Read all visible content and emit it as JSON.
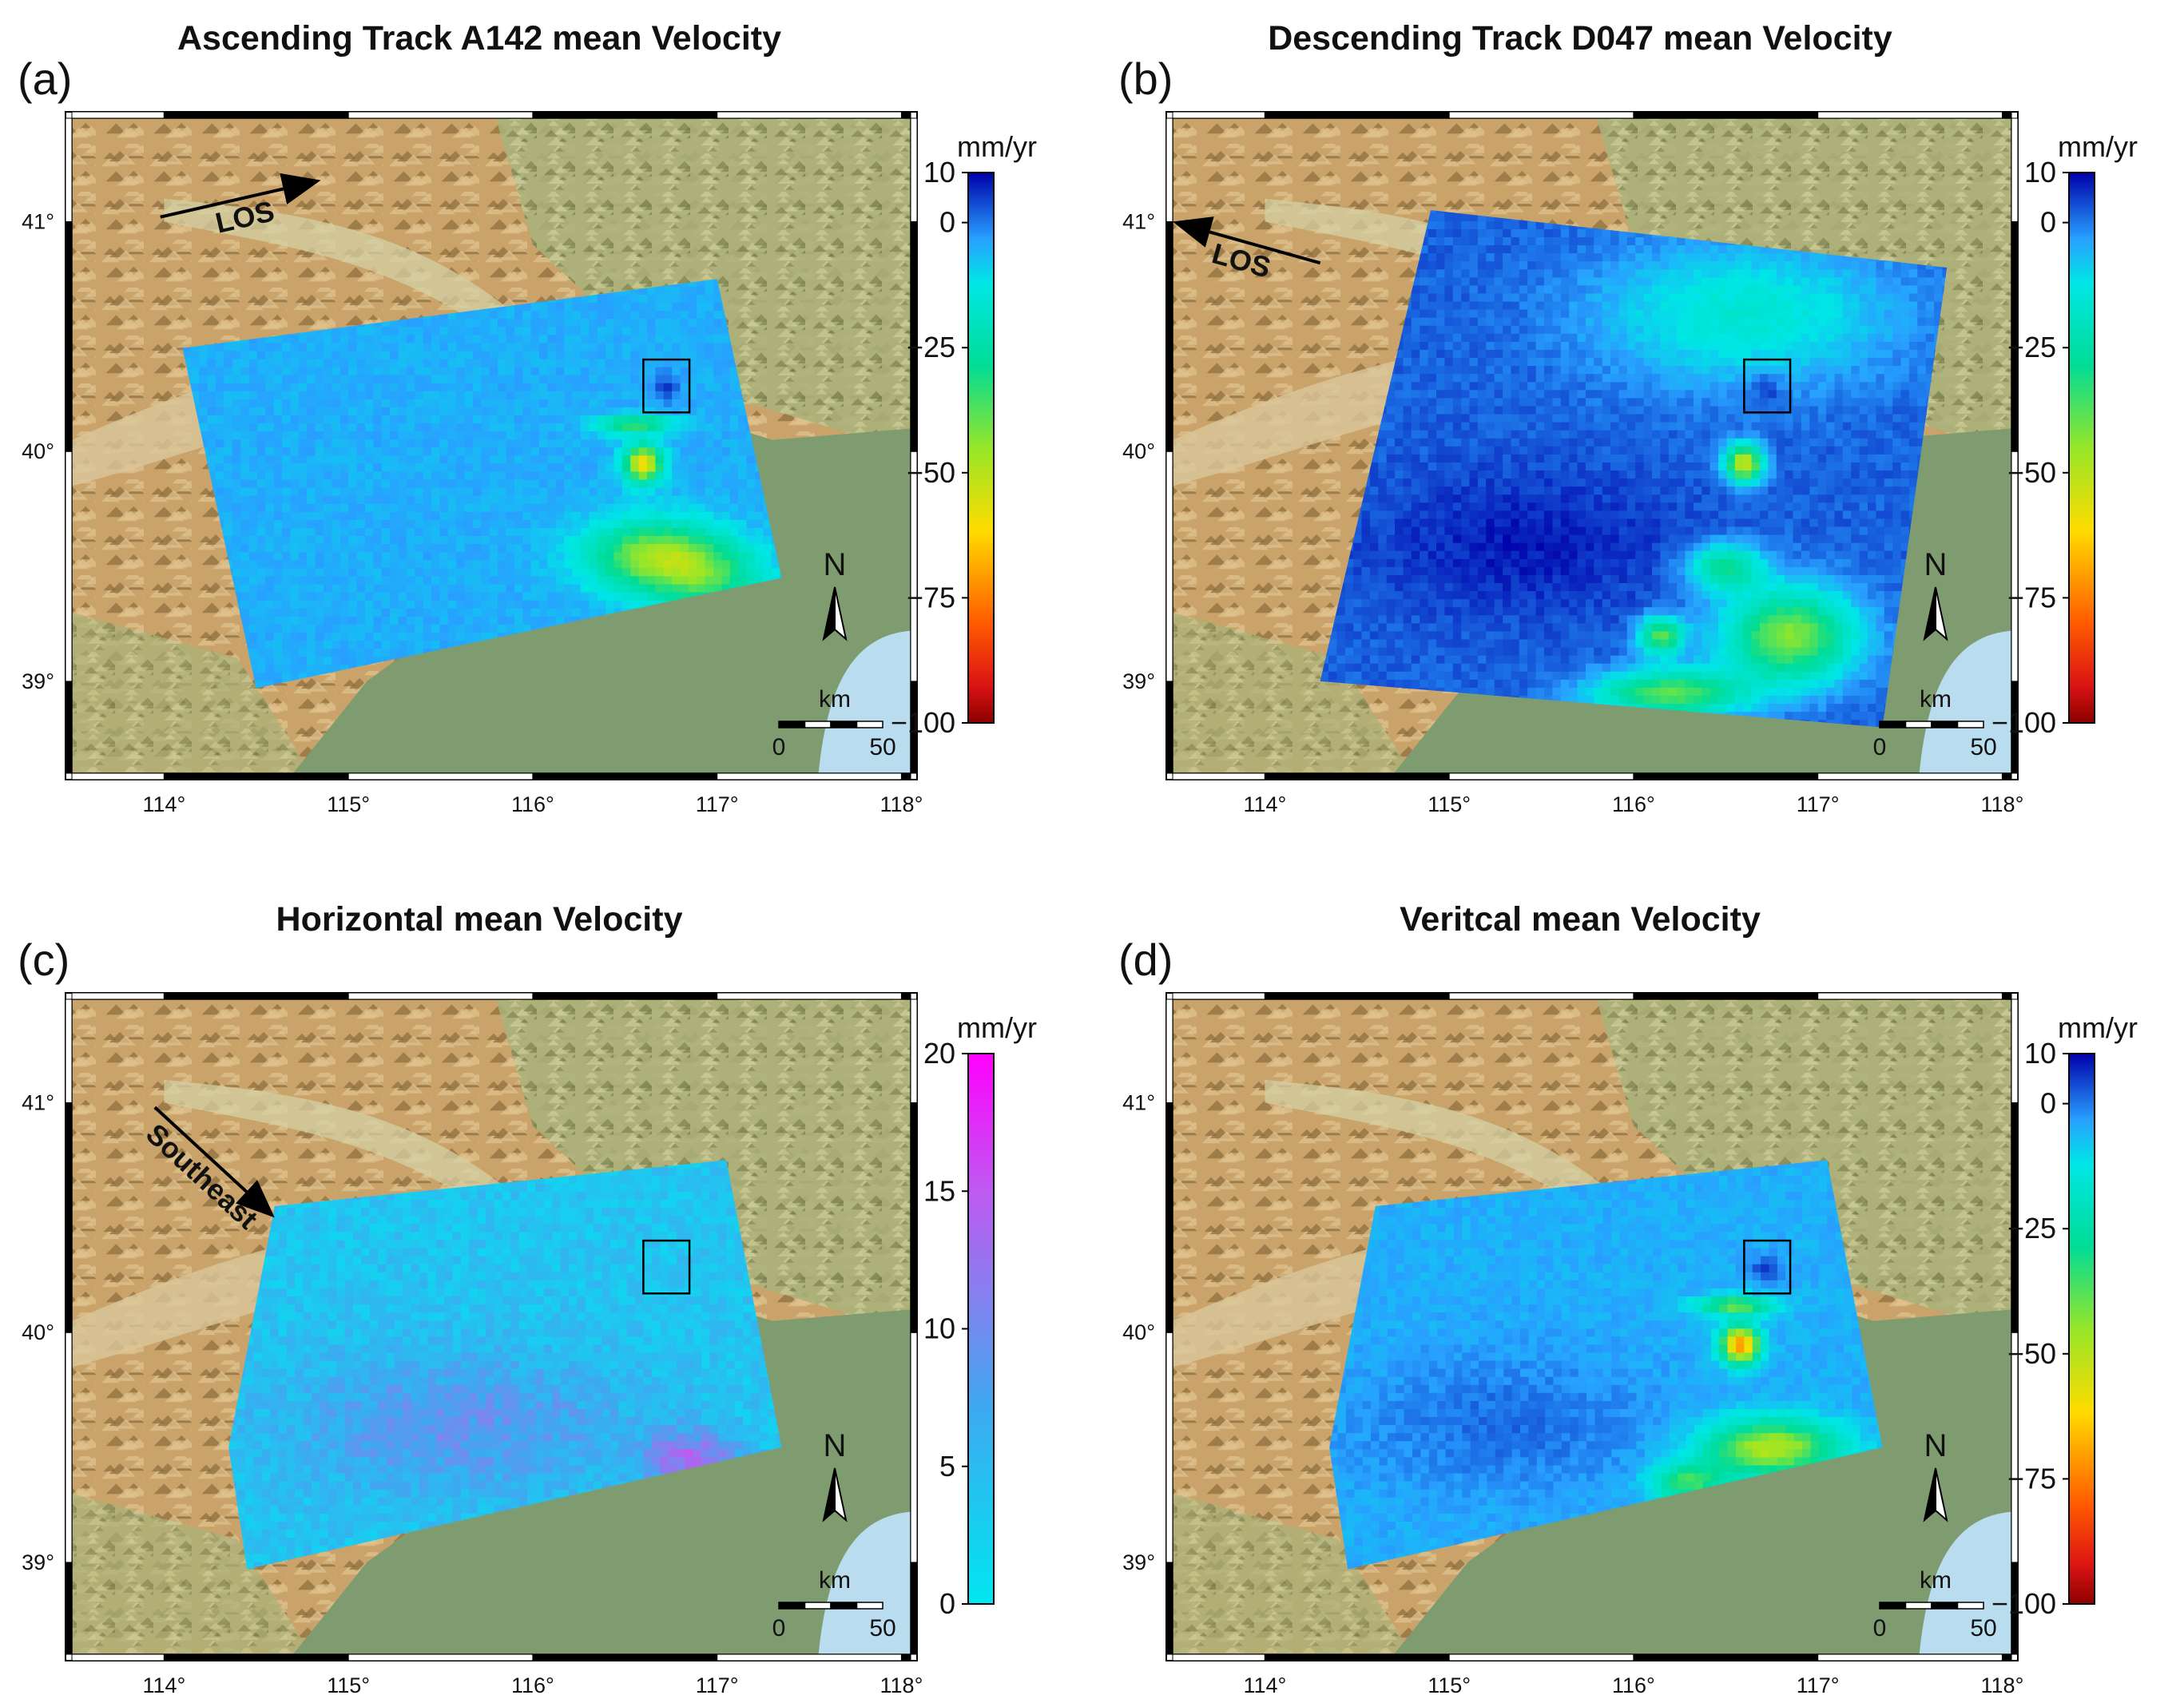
{
  "colors": {
    "terrain_high": "#c9a36a",
    "terrain_mid": "#a8b27a",
    "plain": "#7f9c70",
    "sea": "#b9dcee",
    "frame_dark": "#000000",
    "frame_light": "#ffffff"
  },
  "axes": {
    "lon_range": [
      113.5,
      118.05
    ],
    "lat_range": [
      38.6,
      41.45
    ],
    "lon_ticks": [
      {
        "v": 114,
        "t": "114°"
      },
      {
        "v": 115,
        "t": "115°"
      },
      {
        "v": 116,
        "t": "116°"
      },
      {
        "v": 117,
        "t": "117°"
      },
      {
        "v": 118,
        "t": "118°"
      }
    ],
    "lat_ticks": [
      {
        "v": 39,
        "t": "39°"
      },
      {
        "v": 40,
        "t": "40°"
      },
      {
        "v": 41,
        "t": "41°"
      }
    ]
  },
  "scale_bar": {
    "north": "N",
    "unit": "km",
    "start": "0",
    "end": "50"
  },
  "panels": [
    {
      "id": "a",
      "label": "(a)",
      "title": "Ascending Track A142 mean Velocity",
      "colorbar": {
        "unit": "mm/yr",
        "min": -100,
        "max": 10,
        "ticks": [
          "10",
          "0",
          "−25",
          "−50",
          "−75",
          "−100"
        ],
        "tick_values": [
          10,
          0,
          -25,
          -50,
          -75,
          -100
        ],
        "palette": "rainbow"
      },
      "arrow": {
        "label": "LOS",
        "from": [
          113.98,
          41.02
        ],
        "to": [
          114.85,
          41.18
        ]
      },
      "footprint": [
        [
          114.1,
          40.45
        ],
        [
          117.0,
          40.75
        ],
        [
          117.35,
          39.45
        ],
        [
          114.5,
          38.97
        ]
      ],
      "box": [
        [
          116.6,
          40.4
        ],
        [
          116.85,
          40.17
        ]
      ],
      "field": "asc"
    },
    {
      "id": "b",
      "label": "(b)",
      "title": "Descending Track D047 mean Velocity",
      "colorbar": {
        "unit": "mm/yr",
        "min": -100,
        "max": 10,
        "ticks": [
          "10",
          "0",
          "−25",
          "−50",
          "−75",
          "−100"
        ],
        "tick_values": [
          10,
          0,
          -25,
          -50,
          -75,
          -100
        ],
        "palette": "rainbow"
      },
      "arrow": {
        "label": "LOS",
        "from": [
          114.3,
          40.82
        ],
        "to": [
          113.5,
          41.0
        ]
      },
      "footprint": [
        [
          114.9,
          41.05
        ],
        [
          117.7,
          40.8
        ],
        [
          117.35,
          38.8
        ],
        [
          114.3,
          39.0
        ]
      ],
      "box": [
        [
          116.6,
          40.4
        ],
        [
          116.85,
          40.17
        ]
      ],
      "field": "desc"
    },
    {
      "id": "c",
      "label": "(c)",
      "title": "Horizontal mean Velocity",
      "colorbar": {
        "unit": "mm/yr",
        "min": 0,
        "max": 20,
        "ticks": [
          "20",
          "15",
          "10",
          "5",
          "0"
        ],
        "tick_values": [
          20,
          15,
          10,
          5,
          0
        ],
        "palette": "hcool"
      },
      "arrow": {
        "label": "Southeast",
        "from": [
          113.95,
          40.98
        ],
        "to": [
          114.6,
          40.5
        ]
      },
      "footprint": [
        [
          114.6,
          40.55
        ],
        [
          117.05,
          40.75
        ],
        [
          117.35,
          39.5
        ],
        [
          114.45,
          38.97
        ],
        [
          114.35,
          39.5
        ]
      ],
      "box": [
        [
          116.6,
          40.4
        ],
        [
          116.85,
          40.17
        ]
      ],
      "field": "horiz"
    },
    {
      "id": "d",
      "label": "(d)",
      "title": "Veritcal mean Velocity",
      "colorbar": {
        "unit": "mm/yr",
        "min": -100,
        "max": 10,
        "ticks": [
          "10",
          "0",
          "−25",
          "−50",
          "−75",
          "−100"
        ],
        "tick_values": [
          10,
          0,
          -25,
          -50,
          -75,
          -100
        ],
        "palette": "rainbow"
      },
      "arrow": null,
      "footprint": [
        [
          114.6,
          40.55
        ],
        [
          117.05,
          40.75
        ],
        [
          117.35,
          39.5
        ],
        [
          114.45,
          38.97
        ],
        [
          114.35,
          39.5
        ]
      ],
      "box": [
        [
          116.6,
          40.4
        ],
        [
          116.85,
          40.17
        ]
      ],
      "field": "vert"
    }
  ]
}
